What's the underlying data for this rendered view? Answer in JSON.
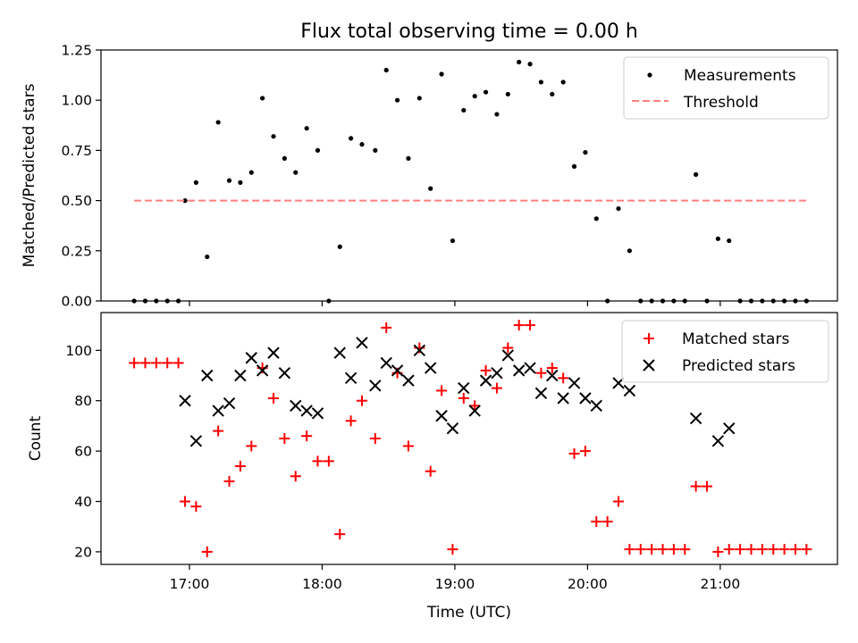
{
  "chart_data": [
    {
      "type": "scatter",
      "title": "Flux total observing time = 0.00 h",
      "xlabel": "",
      "ylabel": "Matched/Predicted stars",
      "xlim": [
        "16:20",
        "21:53"
      ],
      "ylim": [
        0,
        1.25
      ],
      "yticks": [
        "0.00",
        "0.25",
        "0.50",
        "0.75",
        "1.00",
        "1.25"
      ],
      "legend_position": "top-right",
      "series": [
        {
          "name": "Measurements",
          "marker": "dot",
          "color": "#000000",
          "points": [
            [
              "16:35",
              0
            ],
            [
              "16:40",
              0
            ],
            [
              "16:45",
              0
            ],
            [
              "16:50",
              0
            ],
            [
              "16:55",
              0
            ],
            [
              "16:58",
              0.5
            ],
            [
              "17:03",
              0.59
            ],
            [
              "17:08",
              0.22
            ],
            [
              "17:13",
              0.89
            ],
            [
              "17:18",
              0.6
            ],
            [
              "17:23",
              0.59
            ],
            [
              "17:28",
              0.64
            ],
            [
              "17:33",
              1.01
            ],
            [
              "17:38",
              0.82
            ],
            [
              "17:43",
              0.71
            ],
            [
              "17:48",
              0.64
            ],
            [
              "17:53",
              0.86
            ],
            [
              "17:58",
              0.75
            ],
            [
              "18:03",
              0
            ],
            [
              "18:08",
              0.27
            ],
            [
              "18:13",
              0.81
            ],
            [
              "18:18",
              0.78
            ],
            [
              "18:24",
              0.75
            ],
            [
              "18:29",
              1.15
            ],
            [
              "18:34",
              1.0
            ],
            [
              "18:39",
              0.71
            ],
            [
              "18:44",
              1.01
            ],
            [
              "18:49",
              0.56
            ],
            [
              "18:54",
              1.13
            ],
            [
              "18:59",
              0.3
            ],
            [
              "19:04",
              0.95
            ],
            [
              "19:09",
              1.02
            ],
            [
              "19:14",
              1.04
            ],
            [
              "19:19",
              0.93
            ],
            [
              "19:24",
              1.03
            ],
            [
              "19:29",
              1.19
            ],
            [
              "19:34",
              1.18
            ],
            [
              "19:39",
              1.09
            ],
            [
              "19:44",
              1.03
            ],
            [
              "19:49",
              1.09
            ],
            [
              "19:54",
              0.67
            ],
            [
              "19:59",
              0.74
            ],
            [
              "20:04",
              0.41
            ],
            [
              "20:09",
              0
            ],
            [
              "20:14",
              0.46
            ],
            [
              "20:19",
              0.25
            ],
            [
              "20:24",
              0
            ],
            [
              "20:29",
              0
            ],
            [
              "20:34",
              0
            ],
            [
              "20:39",
              0
            ],
            [
              "20:44",
              0
            ],
            [
              "20:49",
              0.63
            ],
            [
              "20:54",
              0
            ],
            [
              "20:59",
              0.31
            ],
            [
              "21:04",
              0.3
            ],
            [
              "21:09",
              0
            ],
            [
              "21:14",
              0
            ],
            [
              "21:19",
              0
            ],
            [
              "21:24",
              0
            ],
            [
              "21:29",
              0
            ],
            [
              "21:34",
              0
            ],
            [
              "21:39",
              0
            ]
          ]
        },
        {
          "name": "Threshold",
          "style": "dashed",
          "color": "#ff7f7f",
          "points": [
            [
              "16:35",
              0.5
            ],
            [
              "21:39",
              0.5
            ]
          ]
        }
      ]
    },
    {
      "type": "scatter",
      "title": "",
      "xlabel": "Time (UTC)",
      "ylabel": "Count",
      "xlim": [
        "16:20",
        "21:53"
      ],
      "ylim": [
        15,
        115
      ],
      "xticks": [
        "17:00",
        "18:00",
        "19:00",
        "20:00",
        "21:00"
      ],
      "yticks": [
        "20",
        "40",
        "60",
        "80",
        "100"
      ],
      "legend_position": "top-right",
      "series": [
        {
          "name": "Matched stars",
          "marker": "plus",
          "color": "#ff0000",
          "points": [
            [
              "16:35",
              95
            ],
            [
              "16:40",
              95
            ],
            [
              "16:45",
              95
            ],
            [
              "16:50",
              95
            ],
            [
              "16:55",
              95
            ],
            [
              "16:58",
              40
            ],
            [
              "17:03",
              38
            ],
            [
              "17:08",
              20
            ],
            [
              "17:13",
              68
            ],
            [
              "17:18",
              48
            ],
            [
              "17:23",
              54
            ],
            [
              "17:28",
              62
            ],
            [
              "17:33",
              93
            ],
            [
              "17:38",
              81
            ],
            [
              "17:43",
              65
            ],
            [
              "17:48",
              50
            ],
            [
              "17:53",
              66
            ],
            [
              "17:58",
              56
            ],
            [
              "18:03",
              56
            ],
            [
              "18:08",
              27
            ],
            [
              "18:13",
              72
            ],
            [
              "18:18",
              80
            ],
            [
              "18:24",
              65
            ],
            [
              "18:29",
              109
            ],
            [
              "18:34",
              91
            ],
            [
              "18:39",
              62
            ],
            [
              "18:44",
              101
            ],
            [
              "18:49",
              52
            ],
            [
              "18:54",
              84
            ],
            [
              "18:59",
              21
            ],
            [
              "19:04",
              81
            ],
            [
              "19:09",
              78
            ],
            [
              "19:14",
              92
            ],
            [
              "19:19",
              85
            ],
            [
              "19:24",
              101
            ],
            [
              "19:29",
              110
            ],
            [
              "19:34",
              110
            ],
            [
              "19:39",
              91
            ],
            [
              "19:44",
              93
            ],
            [
              "19:49",
              89
            ],
            [
              "19:54",
              59
            ],
            [
              "19:59",
              60
            ],
            [
              "20:04",
              32
            ],
            [
              "20:09",
              32
            ],
            [
              "20:14",
              40
            ],
            [
              "20:19",
              21
            ],
            [
              "20:24",
              21
            ],
            [
              "20:29",
              21
            ],
            [
              "20:34",
              21
            ],
            [
              "20:39",
              21
            ],
            [
              "20:44",
              21
            ],
            [
              "20:49",
              46
            ],
            [
              "20:54",
              46
            ],
            [
              "20:59",
              20
            ],
            [
              "21:04",
              21
            ],
            [
              "21:09",
              21
            ],
            [
              "21:14",
              21
            ],
            [
              "21:19",
              21
            ],
            [
              "21:24",
              21
            ],
            [
              "21:29",
              21
            ],
            [
              "21:34",
              21
            ],
            [
              "21:39",
              21
            ]
          ]
        },
        {
          "name": "Predicted stars",
          "marker": "x",
          "color": "#000000",
          "points": [
            [
              "16:58",
              80
            ],
            [
              "17:03",
              64
            ],
            [
              "17:08",
              90
            ],
            [
              "17:13",
              76
            ],
            [
              "17:18",
              79
            ],
            [
              "17:23",
              90
            ],
            [
              "17:28",
              97
            ],
            [
              "17:33",
              92
            ],
            [
              "17:38",
              99
            ],
            [
              "17:43",
              91
            ],
            [
              "17:48",
              78
            ],
            [
              "17:53",
              76
            ],
            [
              "17:58",
              75
            ],
            [
              "18:08",
              99
            ],
            [
              "18:13",
              89
            ],
            [
              "18:18",
              103
            ],
            [
              "18:24",
              86
            ],
            [
              "18:29",
              95
            ],
            [
              "18:34",
              92
            ],
            [
              "18:39",
              88
            ],
            [
              "18:44",
              100
            ],
            [
              "18:49",
              93
            ],
            [
              "18:54",
              74
            ],
            [
              "18:59",
              69
            ],
            [
              "19:04",
              85
            ],
            [
              "19:09",
              76
            ],
            [
              "19:14",
              88
            ],
            [
              "19:19",
              91
            ],
            [
              "19:24",
              98
            ],
            [
              "19:29",
              92
            ],
            [
              "19:34",
              93
            ],
            [
              "19:39",
              83
            ],
            [
              "19:44",
              90
            ],
            [
              "19:49",
              81
            ],
            [
              "19:54",
              87
            ],
            [
              "19:59",
              81
            ],
            [
              "20:04",
              78
            ],
            [
              "20:14",
              87
            ],
            [
              "20:19",
              84
            ],
            [
              "20:49",
              73
            ],
            [
              "20:59",
              64
            ],
            [
              "21:04",
              69
            ]
          ]
        }
      ]
    }
  ]
}
